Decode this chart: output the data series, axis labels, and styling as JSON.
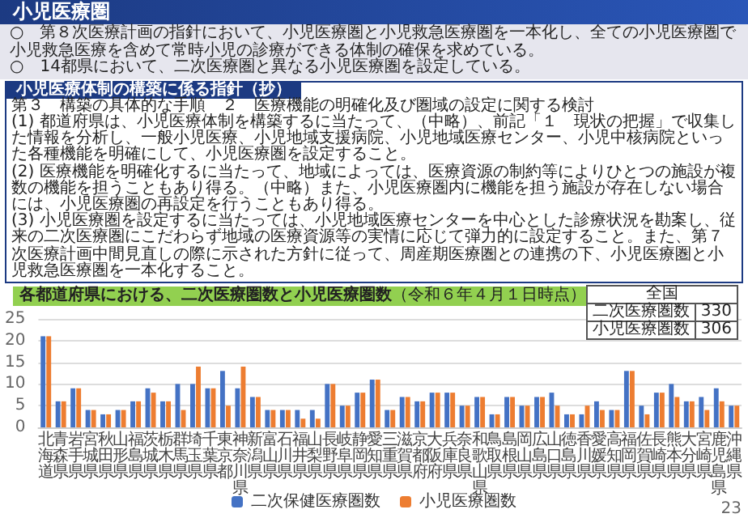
{
  "chart_data": {
    "type": "bar",
    "title": "各都道府県における、二次医療圏数と小児医療圏数",
    "subtitle": "（令和６年４月１日時点）",
    "categories": [
      "北海道",
      "青森県",
      "岩手県",
      "宮城県",
      "秋田県",
      "山形県",
      "福島県",
      "茨城県",
      "栃木県",
      "群馬県",
      "埼玉県",
      "千葉県",
      "東京都",
      "神奈川県",
      "新潟県",
      "富山県",
      "石川県",
      "福井県",
      "山梨県",
      "長野県",
      "岐阜県",
      "静岡県",
      "愛知県",
      "三重県",
      "滋賀県",
      "京都府",
      "大阪府",
      "兵庫県",
      "奈良県",
      "和歌山県",
      "鳥取県",
      "島根県",
      "岡山県",
      "広島県",
      "山口県",
      "徳島県",
      "香川県",
      "愛媛県",
      "高知県",
      "福岡県",
      "佐賀県",
      "長崎県",
      "熊本県",
      "大分県",
      "宮崎県",
      "鹿児島県",
      "沖縄県"
    ],
    "series": [
      {
        "name": "二次保健医療圏数",
        "color": "#4472c4",
        "values": [
          21,
          6,
          9,
          4,
          3,
          4,
          6,
          9,
          6,
          10,
          10,
          9,
          13,
          9,
          7,
          4,
          4,
          4,
          4,
          10,
          5,
          8,
          11,
          4,
          7,
          6,
          8,
          8,
          5,
          7,
          3,
          7,
          5,
          7,
          8,
          3,
          3,
          6,
          4,
          13,
          5,
          8,
          10,
          6,
          7,
          9,
          5
        ]
      },
      {
        "name": "小児医療圏数",
        "color": "#ed7d31",
        "values": [
          21,
          6,
          9,
          4,
          3,
          4,
          6,
          8,
          6,
          4,
          14,
          9,
          5,
          14,
          7,
          4,
          4,
          2,
          2,
          10,
          5,
          8,
          11,
          4,
          7,
          6,
          8,
          8,
          5,
          7,
          3,
          7,
          5,
          7,
          5,
          3,
          5,
          4,
          4,
          13,
          3,
          8,
          7,
          6,
          4,
          6,
          5
        ]
      }
    ],
    "ylim": [
      0,
      25
    ],
    "yticks": [
      0,
      5,
      10,
      15,
      20,
      25
    ],
    "grid": "y",
    "legend": "bottom",
    "annotations": [
      "小児医療圏",
      "○　第８次医療計画の指針において、小児医療圏と小児救急医療圏を一本化し、全ての小児医療圏で小児救急医療を含めて常時小児の診療ができる体制の確保を求めている。",
      "○　14都県において、二次医療圏と異なる小児医療圏を設定している。",
      "小児医療体制の構築に係る指針（抄）",
      "第３　構築の具体的な手順　２　医療機能の明確化及び圏域の設定に関する検討",
      "(1) 都道府県は、小児医療体制を構築するに当たって、（中略）、前記「１　現状の把握」で収集した情報を分析し、一般小児医療、小児地域支援病院、小児地域医療センター、小児中核病院といった各種機能を明確にして、小児医療圏を設定すること。",
      "(2) 医療機能を明確化するに当たって、地域によっては、医療資源の制約等によりひとつの施設が複数の機能を担うこともあり得る。（中略）また、小児医療圏内に機能を担う施設が存在しない場合には、小児医療圏の再設定を行うこともあり得る。",
      "(3) 小児医療圏を設定するに当たっては、小児地域医療センターを中心とした診療状況を勘案し、従来の二次医療圏にこだわらず地域の医療資源等の実情に応じて弾力的に設定すること。また、第７次医療計画中間見直しの際に示された方針に従って、周産期医療圏との連携の下、小児医療圏と小児救急医療圏を一本化すること。",
      "全国",
      "二次医療圏数",
      "330",
      "小児医療圏数",
      "306",
      "23"
    ]
  }
}
